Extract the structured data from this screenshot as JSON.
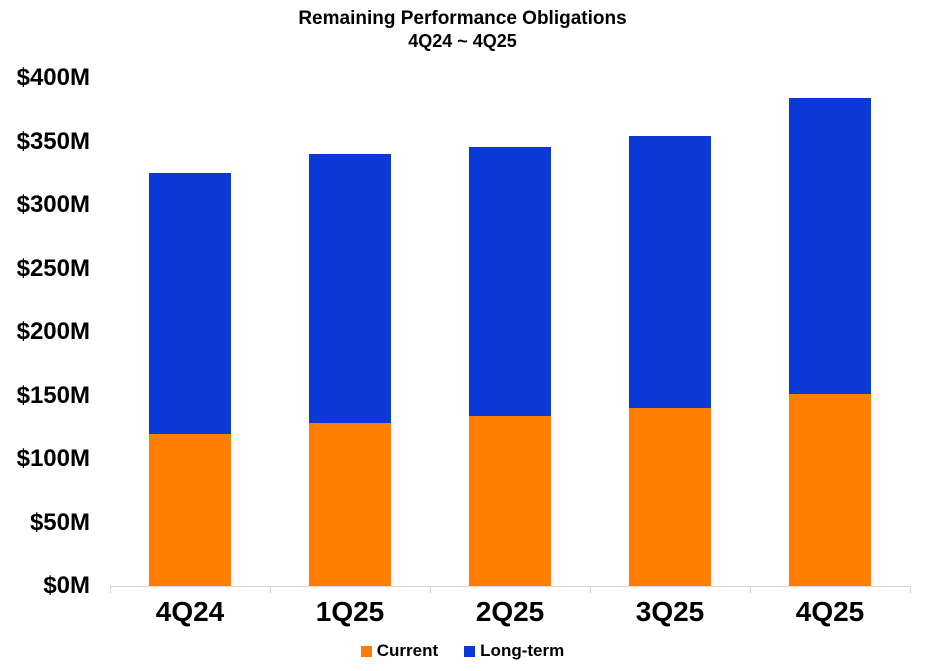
{
  "chart_data": {
    "type": "bar",
    "stacked": true,
    "title": "Remaining Performance Obligations",
    "subtitle": "4Q24 ~ 4Q25",
    "categories": [
      "4Q24",
      "1Q25",
      "2Q25",
      "3Q25",
      "4Q25"
    ],
    "series": [
      {
        "name": "Current",
        "color": "#FF7D00",
        "values": [
          120,
          128,
          134,
          140,
          151
        ]
      },
      {
        "name": "Long-term",
        "color": "#0C39D6",
        "values": [
          205,
          212,
          212,
          214,
          233
        ]
      }
    ],
    "stacked_totals": [
      325,
      340,
      346,
      354,
      384
    ],
    "y_ticks": [
      {
        "label": "$400M",
        "value": 400
      },
      {
        "label": "$350M",
        "value": 350
      },
      {
        "label": "$300M",
        "value": 300
      },
      {
        "label": "$250M",
        "value": 250
      },
      {
        "label": "$200M",
        "value": 200
      },
      {
        "label": "$150M",
        "value": 150
      },
      {
        "label": "$100M",
        "value": 100
      },
      {
        "label": "$50M",
        "value": 50
      },
      {
        "label": "$0M",
        "value": 0
      }
    ],
    "ylim": [
      0,
      400
    ],
    "xlabel": "",
    "ylabel": "",
    "grid": false,
    "legend_position": "bottom",
    "axis_line_color": "#D9D9D9",
    "text_color": "#000000"
  }
}
